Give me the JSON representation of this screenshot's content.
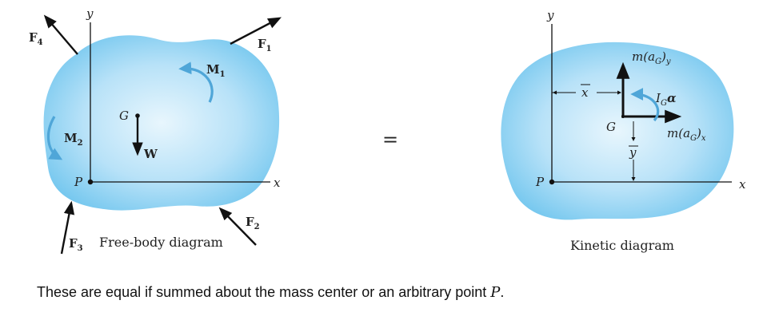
{
  "fbd": {
    "axis_y": "y",
    "axis_x": "x",
    "point_p": "P",
    "point_g": "G",
    "weight": "W",
    "m1": "M",
    "m1_sub": "1",
    "m2": "M",
    "m2_sub": "2",
    "f1": "F",
    "f1_sub": "1",
    "f2": "F",
    "f2_sub": "2",
    "f3": "F",
    "f3_sub": "3",
    "f4": "F",
    "f4_sub": "4",
    "title": "Free-body diagram"
  },
  "equals": "=",
  "kd": {
    "axis_y": "y",
    "axis_x": "x",
    "point_p": "P",
    "point_g": "G",
    "xbar": "x",
    "ybar": "y",
    "may": "m(a",
    "may_sub1": "G",
    "may_end": ")",
    "may_sub2": "y",
    "max": "m(a",
    "max_sub1": "G",
    "max_end": ")",
    "max_sub2": "x",
    "iga": "I",
    "iga_sub": "G",
    "iga_alpha": "α",
    "title": "Kinetic diagram"
  },
  "caption": {
    "text": "These are equal if summed about the mass center or an arbitrary point ",
    "point": "P",
    "end": "."
  },
  "colors": {
    "blob_edge": "#6cc4ee",
    "blob_center": "#e6f5fd",
    "moment_arrow": "#4fa6d8",
    "ink": "#111111"
  }
}
